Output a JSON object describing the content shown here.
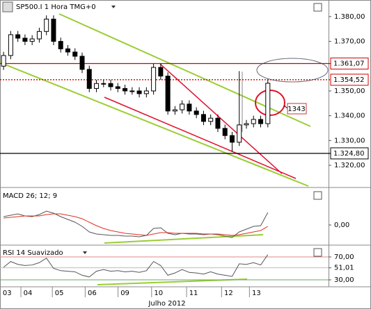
{
  "chart_data": [
    {
      "type": "candlestick",
      "title": "SP500.I 1 Hora TMG+0",
      "x": [
        0,
        1,
        2,
        3,
        4,
        5,
        6,
        7,
        8,
        9,
        10,
        11,
        12,
        13,
        14,
        15,
        16,
        17,
        18,
        19,
        20,
        21,
        22,
        23,
        24,
        25,
        26,
        27,
        28,
        29,
        30,
        31,
        32,
        33,
        34,
        35,
        36,
        37
      ],
      "open": [
        1.36,
        1.3643,
        1.3727,
        1.3713,
        1.37,
        1.371,
        1.374,
        1.379,
        1.37,
        1.367,
        1.3657,
        1.364,
        1.3587,
        1.351,
        1.353,
        1.353,
        1.3517,
        1.351,
        1.35,
        1.35,
        1.3489,
        1.35,
        1.3595,
        1.356,
        1.3419,
        1.3424,
        1.3447,
        1.3419,
        1.3405,
        1.3377,
        1.339,
        1.3349,
        1.332,
        1.3293,
        1.3363,
        1.3368,
        1.3385,
        1.3368
      ],
      "high": [
        1.3658,
        1.3742,
        1.3742,
        1.3728,
        1.3725,
        1.3755,
        1.3805,
        1.3805,
        1.3715,
        1.3685,
        1.3672,
        1.3655,
        1.3602,
        1.3545,
        1.3545,
        1.3545,
        1.3532,
        1.3525,
        1.3515,
        1.3515,
        1.3515,
        1.361,
        1.361,
        1.3575,
        1.3439,
        1.3462,
        1.3462,
        1.3434,
        1.342,
        1.3405,
        1.3405,
        1.3364,
        1.3335,
        1.358,
        1.3383,
        1.34,
        1.34,
        1.3546
      ],
      "low": [
        1.3585,
        1.3628,
        1.3698,
        1.3685,
        1.3685,
        1.3695,
        1.3725,
        1.3685,
        1.3655,
        1.3642,
        1.3625,
        1.3572,
        1.3495,
        1.3495,
        1.3515,
        1.3502,
        1.3495,
        1.3485,
        1.3485,
        1.3474,
        1.3474,
        1.3485,
        1.3545,
        1.3404,
        1.3404,
        1.3409,
        1.3404,
        1.339,
        1.3362,
        1.3362,
        1.3334,
        1.3305,
        1.3255,
        1.3278,
        1.3348,
        1.3353,
        1.3353,
        1.3353
      ],
      "close": [
        1.3643,
        1.3727,
        1.3713,
        1.37,
        1.371,
        1.374,
        1.379,
        1.37,
        1.367,
        1.3657,
        1.364,
        1.3587,
        1.351,
        1.353,
        1.353,
        1.3517,
        1.351,
        1.35,
        1.35,
        1.3489,
        1.35,
        1.3595,
        1.356,
        1.3419,
        1.3424,
        1.3447,
        1.3419,
        1.3405,
        1.3377,
        1.339,
        1.3349,
        1.332,
        1.3293,
        1.3363,
        1.3368,
        1.3385,
        1.3368,
        1.3531
      ],
      "xlim": [
        -0.5,
        45.5
      ],
      "ylim": [
        1.3116,
        1.3867
      ],
      "yticks": [
        {
          "value": 1.38,
          "label": "1.380,00"
        },
        {
          "value": 1.37,
          "label": "1.370,00"
        },
        {
          "value": 1.35,
          "label": "1.350,00"
        },
        {
          "value": 1.34,
          "label": "1.340,00"
        },
        {
          "value": 1.33,
          "label": "1.330,00"
        },
        {
          "value": 1.32,
          "label": "1.320,00"
        }
      ],
      "levels": [
        {
          "value": 1.36107,
          "label": "1.361,07",
          "color": "#d00000",
          "dash": false
        },
        {
          "value": 1.35452,
          "label": "1.354,52",
          "color": "#d00000",
          "dash": true
        },
        {
          "value": 1.3248,
          "label": "1.324,80",
          "color": "#000000",
          "dash": false
        }
      ],
      "annotation": "1343"
    },
    {
      "type": "line",
      "title": "MACD 26; 12; 9",
      "x": [
        0,
        1,
        2,
        3,
        4,
        5,
        6,
        7,
        8,
        9,
        10,
        11,
        12,
        13,
        14,
        15,
        16,
        17,
        18,
        19,
        20,
        21,
        22,
        23,
        24,
        25,
        26,
        27,
        28,
        29,
        30,
        31,
        32,
        33,
        34,
        35,
        36,
        37
      ],
      "series": [
        {
          "color": "#555555",
          "values": [
            0.0012,
            0.0014,
            0.0016,
            0.0013,
            0.0012,
            0.0015,
            0.002,
            0.0017,
            0.0012,
            0.0008,
            0.0004,
            -0.0002,
            -0.001,
            -0.0013,
            -0.0014,
            -0.0015,
            -0.0015,
            -0.0016,
            -0.0016,
            -0.0017,
            -0.0015,
            -0.0005,
            -0.0004,
            -0.0012,
            -0.0014,
            -0.0012,
            -0.0013,
            -0.0013,
            -0.0014,
            -0.0013,
            -0.0014,
            -0.0016,
            -0.0018,
            -0.001,
            -0.0006,
            -0.0002,
            -0.0001,
            0.0018
          ]
        },
        {
          "color": "#e03020",
          "values": [
            0.001,
            0.0011,
            0.0012,
            0.0013,
            0.0013,
            0.0013,
            0.0015,
            0.0016,
            0.0016,
            0.0014,
            0.0012,
            0.0009,
            0.0004,
            -0.0001,
            -0.0005,
            -0.0008,
            -0.001,
            -0.0012,
            -0.0013,
            -0.0014,
            -0.0015,
            -0.0013,
            -0.0011,
            -0.0011,
            -0.0012,
            -0.0012,
            -0.0012,
            -0.0012,
            -0.0013,
            -0.0013,
            -0.0013,
            -0.0014,
            -0.0015,
            -0.0014,
            -0.0012,
            -0.001,
            -0.0008,
            -0.0002
          ]
        }
      ],
      "xlim": [
        -0.5,
        45.5
      ],
      "ylim": [
        -0.0028,
        0.0052
      ],
      "yticks": [
        {
          "value": 0,
          "label": "0,00"
        }
      ]
    },
    {
      "type": "line",
      "title": "RSI 14 Suavizado",
      "x": [
        0,
        1,
        2,
        3,
        4,
        5,
        6,
        7,
        8,
        9,
        10,
        11,
        12,
        13,
        14,
        15,
        16,
        17,
        18,
        19,
        20,
        21,
        22,
        23,
        24,
        25,
        26,
        27,
        28,
        29,
        30,
        31,
        32,
        33,
        34,
        35,
        36,
        37
      ],
      "series": [
        {
          "color": "#555555",
          "values": [
            52,
            62,
            57,
            55,
            56,
            60,
            68,
            50,
            46,
            45,
            44,
            38,
            35,
            45,
            48,
            45,
            46,
            44,
            45,
            43,
            46,
            62,
            55,
            38,
            42,
            48,
            43,
            42,
            40,
            44,
            40,
            38,
            36,
            58,
            57,
            60,
            56,
            74
          ]
        }
      ],
      "xlim": [
        -0.5,
        45.5
      ],
      "ylim": [
        19.1,
        88.2
      ],
      "yticks": [
        {
          "value": 70,
          "label": "70,00"
        },
        {
          "value": 51.01,
          "label": "51,01"
        },
        {
          "value": 30,
          "label": "30,00"
        }
      ],
      "xticks": [
        {
          "value": 0.5,
          "label": "03"
        },
        {
          "value": 3.4,
          "label": "04"
        },
        {
          "value": 7.8,
          "label": "05"
        },
        {
          "value": 12.4,
          "label": "06"
        },
        {
          "value": 17.0,
          "label": "09"
        },
        {
          "value": 21.7,
          "label": "10"
        },
        {
          "value": 26.6,
          "label": "11"
        },
        {
          "value": 31.5,
          "label": "12"
        },
        {
          "value": 35.4,
          "label": "13"
        }
      ],
      "xlabel": "Julho 2012"
    }
  ]
}
